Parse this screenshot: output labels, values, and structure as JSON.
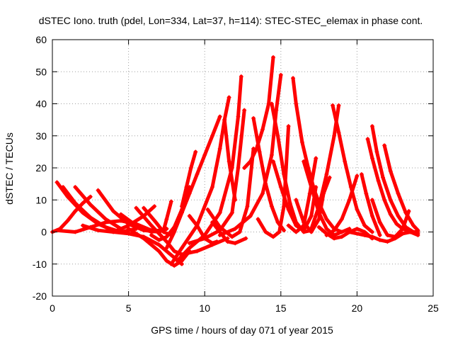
{
  "chart_data": {
    "type": "scatter",
    "title": "dSTEC Iono. truth (pdel, Lon=334, Lat=37, h=114): STEC-STEC_elemax in phase cont.",
    "xlabel": "GPS time / hours of day 071 of year 2015",
    "ylabel": "dSTEC  / TECUs",
    "xlim": [
      0,
      25
    ],
    "ylim": [
      -20,
      60
    ],
    "xticks": [
      "0",
      "5",
      "10",
      "15",
      "20",
      "25"
    ],
    "yticks": [
      "-20",
      "-10",
      "0",
      "10",
      "20",
      "30",
      "40",
      "50",
      "60"
    ],
    "grid": true,
    "marker": "plus",
    "series_color": "#ff0000",
    "series": [
      {
        "x": [
          0.0,
          0.5,
          1.0,
          1.5,
          2.0,
          2.5
        ],
        "y": [
          0.0,
          1.0,
          3.5,
          6.5,
          9.0,
          11.0
        ]
      },
      {
        "x": [
          0.3,
          1.0,
          2.0,
          3.0,
          4.0
        ],
        "y": [
          15.5,
          11.0,
          6.0,
          2.5,
          0.5
        ]
      },
      {
        "x": [
          0.7,
          1.5,
          2.5,
          3.5,
          4.5,
          5.5
        ],
        "y": [
          14.0,
          9.0,
          4.5,
          1.5,
          0.0,
          1.0
        ]
      },
      {
        "x": [
          1.5,
          2.5,
          3.5,
          4.5
        ],
        "y": [
          14.0,
          8.5,
          4.0,
          1.0
        ]
      },
      {
        "x": [
          0.3,
          1.5,
          2.5,
          3.5,
          4.5,
          5.5,
          6.5,
          7.0
        ],
        "y": [
          0.5,
          0.0,
          1.5,
          3.0,
          3.5,
          2.5,
          0.5,
          0.0
        ]
      },
      {
        "x": [
          3.0,
          4.0,
          5.0,
          6.0,
          7.0,
          7.5
        ],
        "y": [
          13.0,
          6.5,
          2.5,
          0.5,
          0.0,
          1.0
        ]
      },
      {
        "x": [
          2.0,
          3.0,
          4.0,
          5.0,
          6.0,
          6.7
        ],
        "y": [
          2.0,
          0.5,
          0.0,
          2.0,
          5.0,
          8.0
        ]
      },
      {
        "x": [
          4.5,
          5.5,
          6.5,
          7.5
        ],
        "y": [
          5.5,
          2.0,
          0.0,
          1.0
        ]
      },
      {
        "x": [
          4.0,
          5.0,
          6.0,
          7.0,
          8.0,
          8.5
        ],
        "y": [
          0.0,
          -0.5,
          -1.5,
          -4.0,
          -8.0,
          -10.0
        ]
      },
      {
        "x": [
          5.0,
          6.0,
          7.0,
          7.5,
          8.0,
          8.5,
          9.0
        ],
        "y": [
          1.0,
          -2.0,
          -6.0,
          -9.0,
          -10.5,
          -9.0,
          -6.0
        ]
      },
      {
        "x": [
          5.5,
          6.5,
          7.5,
          8.0,
          8.5,
          9.5,
          10.5,
          11.5
        ],
        "y": [
          7.5,
          2.0,
          -3.0,
          -6.0,
          -7.0,
          -6.0,
          -4.0,
          -2.0
        ]
      },
      {
        "x": [
          6.0,
          6.8,
          7.3,
          7.8
        ],
        "y": [
          7.5,
          3.0,
          0.0,
          -1.0
        ]
      },
      {
        "x": [
          6.5,
          7.0,
          7.5,
          8.0,
          8.5,
          9.0
        ],
        "y": [
          -1.0,
          -2.5,
          -1.5,
          1.5,
          7.0,
          14.0
        ]
      },
      {
        "x": [
          7.3,
          7.5,
          7.8
        ],
        "y": [
          0.5,
          4.0,
          9.5
        ]
      },
      {
        "x": [
          7.5,
          8.0,
          8.5,
          9.0,
          9.5,
          10.0,
          10.5,
          11.0
        ],
        "y": [
          -5.0,
          0.0,
          6.0,
          12.0,
          18.0,
          24.0,
          30.0,
          36.0
        ]
      },
      {
        "x": [
          8.5,
          8.8,
          9.1,
          9.4
        ],
        "y": [
          8.0,
          14.0,
          20.0,
          25.0
        ]
      },
      {
        "x": [
          9.0,
          9.5,
          10.0,
          10.5,
          10.8
        ],
        "y": [
          5.0,
          2.0,
          -2.0,
          -3.5,
          -3.0
        ]
      },
      {
        "x": [
          7.8,
          8.5,
          9.5,
          10.5,
          11.0,
          11.3,
          11.6
        ],
        "y": [
          -10.0,
          -5.0,
          2.0,
          14.0,
          26.0,
          35.0,
          42.0
        ]
      },
      {
        "x": [
          8.2,
          9.0,
          10.0,
          11.0,
          11.8,
          12.2,
          12.4
        ],
        "y": [
          -9.0,
          -5.0,
          -1.0,
          6.0,
          20.0,
          36.0,
          48.5
        ]
      },
      {
        "x": [
          10.5,
          11.0,
          11.5,
          12.0,
          12.7
        ],
        "y": [
          3.0,
          0.0,
          -3.0,
          -3.5,
          -2.0
        ]
      },
      {
        "x": [
          9.0,
          10.0,
          11.0,
          11.8,
          12.2,
          12.6
        ],
        "y": [
          -3.5,
          -2.0,
          0.5,
          6.0,
          20.0,
          38.0
        ]
      },
      {
        "x": [
          10.2,
          11.0,
          11.8,
          12.3,
          12.8,
          13.2
        ],
        "y": [
          7.0,
          1.5,
          -1.5,
          0.0,
          8.0,
          26.0
        ]
      },
      {
        "x": [
          11.3,
          11.6,
          12.0
        ],
        "y": [
          35.0,
          22.0,
          10.0
        ]
      },
      {
        "x": [
          12.6,
          13.0,
          13.4,
          13.8,
          14.2,
          14.5
        ],
        "y": [
          20.0,
          22.0,
          26.0,
          32.0,
          40.0,
          54.5
        ]
      },
      {
        "x": [
          13.2,
          13.6,
          14.0,
          14.4,
          14.8,
          15.2
        ],
        "y": [
          35.5,
          25.0,
          15.0,
          8.0,
          3.0,
          0.5
        ]
      },
      {
        "x": [
          11.0,
          12.0,
          13.0,
          13.8,
          14.4,
          14.7,
          15.0
        ],
        "y": [
          -1.0,
          1.0,
          5.0,
          12.0,
          24.0,
          38.0,
          49.0
        ]
      },
      {
        "x": [
          13.5,
          14.0,
          14.5,
          14.9,
          15.2,
          15.5
        ],
        "y": [
          4.0,
          0.0,
          -1.5,
          0.0,
          8.0,
          33.0
        ]
      },
      {
        "x": [
          14.4,
          14.8,
          15.2,
          15.6,
          16.0,
          16.5,
          17.0
        ],
        "y": [
          40.0,
          30.0,
          18.0,
          9.0,
          3.0,
          0.0,
          0.5
        ]
      },
      {
        "x": [
          15.8,
          16.0,
          16.4,
          16.8,
          17.2,
          17.6,
          18.0,
          18.5,
          19.0
        ],
        "y": [
          48.0,
          40.0,
          28.0,
          20.0,
          13.0,
          8.0,
          4.0,
          1.0,
          0.0
        ]
      },
      {
        "x": [
          14.5,
          15.0,
          15.5,
          16.0,
          16.5,
          17.0,
          17.3
        ],
        "y": [
          22.0,
          14.0,
          7.0,
          2.0,
          0.5,
          5.0,
          14.0
        ]
      },
      {
        "x": [
          15.5,
          16.0,
          16.5,
          16.9,
          17.3
        ],
        "y": [
          2.0,
          0.0,
          2.0,
          12.0,
          23.0
        ]
      },
      {
        "x": [
          16.0,
          16.5,
          17.0,
          17.5,
          17.8,
          18.2
        ],
        "y": [
          10.0,
          3.0,
          0.0,
          4.0,
          12.0,
          17.0
        ]
      },
      {
        "x": [
          16.5,
          17.0,
          17.5,
          18.0,
          18.5,
          19.0,
          19.5
        ],
        "y": [
          22.0,
          14.0,
          6.0,
          1.0,
          -1.0,
          0.0,
          1.0
        ]
      },
      {
        "x": [
          17.0,
          17.5,
          18.0,
          18.5,
          18.8
        ],
        "y": [
          1.0,
          8.0,
          18.0,
          30.0,
          39.5
        ]
      },
      {
        "x": [
          18.4,
          18.8,
          19.2,
          19.6,
          20.0,
          20.5,
          21.0
        ],
        "y": [
          39.5,
          31.0,
          22.0,
          14.0,
          7.0,
          2.0,
          0.0
        ]
      },
      {
        "x": [
          17.5,
          18.0,
          18.5,
          19.0,
          19.5,
          20.0,
          20.5,
          21.0
        ],
        "y": [
          1.5,
          -0.5,
          -2.0,
          -1.5,
          0.0,
          1.0,
          0.0,
          -2.0
        ]
      },
      {
        "x": [
          20.7,
          21.0,
          21.4,
          21.8,
          22.2,
          22.6,
          23.0,
          23.5,
          24.0
        ],
        "y": [
          29.0,
          23.0,
          16.0,
          10.0,
          5.5,
          2.5,
          1.0,
          0.0,
          -0.5
        ]
      },
      {
        "x": [
          21.0,
          21.3,
          21.7,
          22.2,
          22.7,
          23.2,
          23.7,
          24.0
        ],
        "y": [
          33.0,
          25.0,
          17.0,
          10.0,
          5.0,
          1.5,
          0.0,
          0.0
        ]
      },
      {
        "x": [
          21.8,
          22.2,
          22.7,
          23.2,
          23.7,
          24.0
        ],
        "y": [
          27.0,
          19.0,
          12.0,
          6.0,
          2.0,
          0.5
        ]
      },
      {
        "x": [
          19.5,
          20.0,
          20.5,
          21.0,
          21.5,
          22.0,
          22.5,
          23.0,
          23.5,
          24.0
        ],
        "y": [
          0.0,
          -0.5,
          -1.0,
          -1.5,
          -2.5,
          -3.0,
          -2.0,
          -0.5,
          0.0,
          -1.0
        ]
      },
      {
        "x": [
          21.0,
          21.5,
          22.0,
          22.5,
          23.0,
          23.4
        ],
        "y": [
          10.0,
          3.0,
          -1.0,
          -1.5,
          1.0,
          6.5
        ]
      },
      {
        "x": [
          18.0,
          18.5,
          19.0,
          19.5,
          20.0
        ],
        "y": [
          -1.0,
          0.5,
          4.0,
          10.0,
          17.5
        ]
      },
      {
        "x": [
          20.3,
          20.6,
          21.0,
          21.5
        ],
        "y": [
          18.0,
          12.0,
          5.0,
          -1.0
        ]
      }
    ]
  }
}
